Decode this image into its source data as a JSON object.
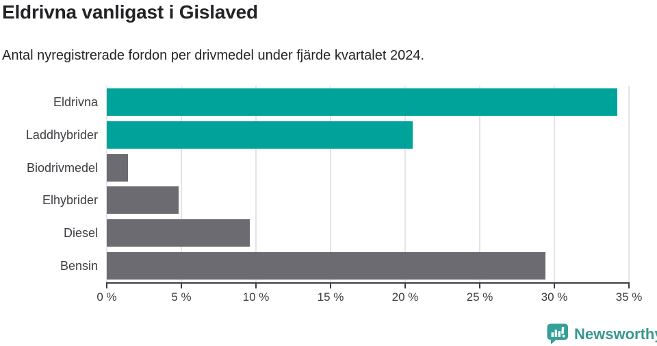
{
  "title": "Eldrivna vanligast i Gislaved",
  "subtitle": "Antal nyregistrerade fordon per drivmedel under fjärde kvartalet 2024.",
  "chart_data": {
    "type": "bar",
    "orientation": "horizontal",
    "title": "Eldrivna vanligast i Gislaved",
    "xlabel": "",
    "ylabel": "",
    "unit": "%",
    "categories": [
      "Eldrivna",
      "Laddhybrider",
      "Biodrivmedel",
      "Elhybrider",
      "Diesel",
      "Bensin"
    ],
    "values": [
      34.2,
      20.5,
      1.4,
      4.8,
      9.6,
      29.4
    ],
    "bar_colors": [
      "#00a39a",
      "#00a39a",
      "#6c6b72",
      "#6c6b72",
      "#6c6b72",
      "#6c6b72"
    ],
    "xlim": [
      0,
      35
    ],
    "x_ticks": [
      0,
      5,
      10,
      15,
      20,
      25,
      30,
      35
    ],
    "x_tick_labels": [
      "0 %",
      "5 %",
      "10 %",
      "15 %",
      "20 %",
      "25 %",
      "30 %",
      "35 %"
    ],
    "grid": "vertical",
    "legend": "none"
  },
  "colors": {
    "accent_teal": "#00a39a",
    "bar_gray": "#6c6b72",
    "gridline": "#e4e4e6",
    "axis": "#3d3d43",
    "text_dark": "#232327",
    "label_gray": "#3c3c42",
    "logo_teal": "#38988f"
  },
  "footer": {
    "brand": "Newsworthy",
    "icon": "speech-bubble-bar-chart-icon"
  }
}
